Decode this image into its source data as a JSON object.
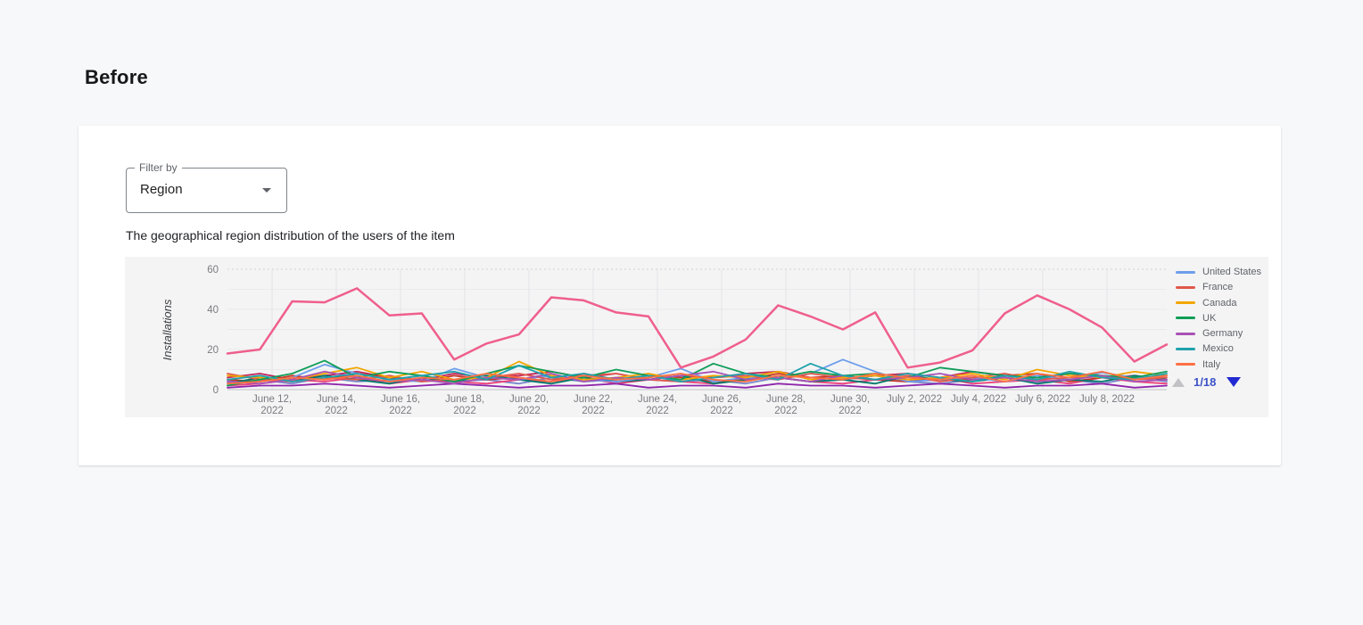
{
  "page": {
    "heading": "Before"
  },
  "filter": {
    "label": "Filter by",
    "value": "Region"
  },
  "description": "The geographical region distribution of the users of the item",
  "chart_data": {
    "type": "line",
    "ylabel": "Installations",
    "ylim": [
      0,
      60
    ],
    "yticks": [
      0,
      20,
      40,
      60
    ],
    "grid": "on",
    "legend_position": "right",
    "x_tick_labels": [
      "June 12,|2022",
      "June 14,|2022",
      "June 16,|2022",
      "June 18,|2022",
      "June 20,|2022",
      "June 22,|2022",
      "June 24,|2022",
      "June 26,|2022",
      "June 28,|2022",
      "June 30,|2022",
      "July 2, 2022",
      "July 4, 2022",
      "July 6, 2022",
      "July 8, 2022"
    ],
    "highlight_series": {
      "name": "highlight",
      "color": "#ef5f8c",
      "values": [
        18,
        20,
        44,
        43.5,
        50.5,
        37,
        38,
        15,
        23,
        27.5,
        46,
        44.5,
        38.5,
        36.5,
        11,
        16.5,
        25,
        42,
        36.5,
        30,
        38.5,
        11,
        13.5,
        19.5,
        38,
        47,
        40,
        31,
        14,
        22.5
      ]
    },
    "series": [
      {
        "name": "United States",
        "color": "#6d9eeb",
        "values": [
          3,
          4,
          6,
          12.5,
          8,
          5,
          4,
          10.5,
          6,
          5,
          7,
          5,
          4,
          6,
          10.5,
          4,
          6,
          5,
          8,
          15,
          9,
          4,
          5,
          6,
          4,
          7,
          5,
          8.5,
          6,
          7
        ]
      },
      {
        "name": "France",
        "color": "#e0584c",
        "values": [
          8,
          5,
          4,
          6,
          5,
          7,
          4,
          5,
          6,
          8,
          5,
          7,
          8,
          5,
          4,
          6,
          7,
          5,
          8,
          6,
          5,
          7,
          4,
          6,
          8,
          5,
          6,
          7,
          5,
          6
        ]
      },
      {
        "name": "Canada",
        "color": "#f2a600",
        "values": [
          7,
          6,
          5,
          8,
          11,
          6,
          9,
          5,
          6,
          14,
          7,
          5,
          6,
          8,
          5,
          7,
          6,
          9,
          5,
          6,
          7,
          5,
          6,
          8,
          5,
          10,
          7,
          6,
          9,
          7
        ]
      },
      {
        "name": "UK",
        "color": "#0f9d58",
        "values": [
          2,
          5,
          8,
          14.5,
          6,
          9,
          7,
          4,
          8,
          12,
          9,
          6,
          10,
          7,
          5,
          13,
          8,
          6,
          9,
          7,
          8,
          6,
          11,
          9,
          7,
          6,
          8,
          7,
          6,
          9
        ]
      },
      {
        "name": "Germany",
        "color": "#a852b5",
        "values": [
          4,
          3,
          5,
          9,
          6,
          4,
          5,
          3,
          6,
          5,
          8,
          4,
          6,
          5,
          7,
          9,
          5,
          6,
          4,
          7,
          5,
          6,
          8,
          5,
          6,
          4,
          5,
          7,
          4,
          5
        ]
      },
      {
        "name": "Mexico",
        "color": "#1fa1ac",
        "values": [
          5,
          7,
          4,
          6,
          8,
          5,
          7,
          9,
          5,
          12,
          6,
          8,
          5,
          7,
          4,
          6,
          8,
          5,
          13,
          7,
          5,
          8,
          6,
          4,
          7,
          5,
          9,
          6,
          5,
          8
        ]
      },
      {
        "name": "Italy",
        "color": "#ff7043",
        "values": [
          3,
          4,
          6,
          5,
          7,
          4,
          6,
          5,
          8,
          6,
          4,
          7,
          5,
          6,
          8,
          5,
          4,
          7,
          6,
          5,
          8,
          6,
          5,
          7,
          4,
          8,
          6,
          9,
          5,
          7
        ]
      }
    ],
    "additional_series": [
      {
        "color": "#c2255c",
        "values": [
          6,
          8,
          5,
          7,
          9,
          6,
          5,
          8,
          6,
          7,
          9,
          6,
          8,
          5,
          7,
          6,
          8,
          9,
          6,
          5,
          7,
          8,
          6,
          9,
          7,
          5,
          8,
          6,
          7,
          5
        ]
      },
      {
        "color": "#7986cb",
        "values": [
          4,
          5,
          3,
          6,
          4,
          5,
          7,
          4,
          5,
          3,
          6,
          4,
          5,
          7,
          4,
          5,
          3,
          6,
          4,
          5,
          7,
          4,
          3,
          5,
          6,
          4,
          5,
          3,
          6,
          4
        ]
      },
      {
        "color": "#ec407a",
        "values": [
          2,
          3,
          5,
          4,
          6,
          3,
          5,
          4,
          3,
          5,
          4,
          6,
          3,
          5,
          4,
          3,
          5,
          6,
          4,
          3,
          5,
          4,
          6,
          3,
          4,
          5,
          3,
          6,
          4,
          3
        ]
      },
      {
        "color": "#c53929",
        "values": [
          5,
          4,
          7,
          5,
          8,
          6,
          4,
          7,
          5,
          6,
          4,
          8,
          5,
          7,
          6,
          4,
          5,
          8,
          6,
          7,
          5,
          4,
          6,
          5,
          7,
          8,
          4,
          6,
          5,
          7
        ]
      },
      {
        "color": "#8e24aa",
        "values": [
          1,
          2,
          2,
          3,
          2,
          1,
          2,
          3,
          2,
          1,
          2,
          2,
          3,
          1,
          2,
          2,
          1,
          3,
          2,
          2,
          1,
          2,
          3,
          2,
          1,
          2,
          2,
          3,
          1,
          2
        ]
      },
      {
        "color": "#00796b",
        "values": [
          3,
          6,
          4,
          7,
          5,
          3,
          6,
          4,
          7,
          5,
          3,
          6,
          4,
          5,
          7,
          3,
          5,
          6,
          4,
          5,
          3,
          7,
          5,
          4,
          6,
          3,
          5,
          4,
          7,
          5
        ]
      }
    ],
    "legend_pagination": {
      "current": "1/18",
      "prev_enabled": false,
      "next_enabled": true
    }
  },
  "colors": {
    "page_bg": "#f7f8fa",
    "card_bg": "#ffffff",
    "panel_bg": "#f4f4f5",
    "pagination_blue": "#3b52c7"
  }
}
